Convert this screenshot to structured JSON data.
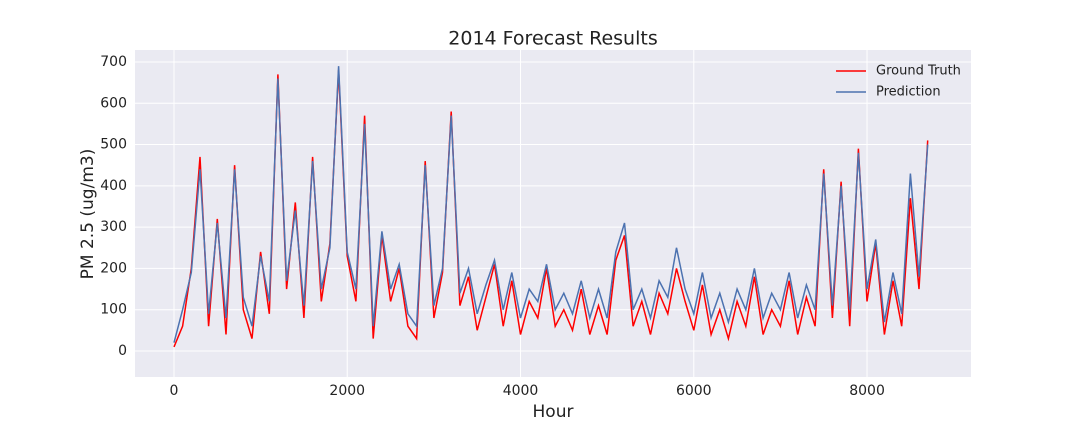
{
  "chart_data": {
    "type": "line",
    "title": "2014 Forecast Results",
    "xlabel": "Hour",
    "ylabel": "PM 2.5 (ug/m3)",
    "x": [
      0,
      100,
      200,
      300,
      400,
      500,
      600,
      700,
      800,
      900,
      1000,
      1100,
      1200,
      1300,
      1400,
      1500,
      1600,
      1700,
      1800,
      1900,
      2000,
      2100,
      2200,
      2300,
      2400,
      2500,
      2600,
      2700,
      2800,
      2900,
      3000,
      3100,
      3200,
      3300,
      3400,
      3500,
      3600,
      3700,
      3800,
      3900,
      4000,
      4100,
      4200,
      4300,
      4400,
      4500,
      4600,
      4700,
      4800,
      4900,
      5000,
      5100,
      5200,
      5300,
      5400,
      5500,
      5600,
      5700,
      5800,
      5900,
      6000,
      6100,
      6200,
      6300,
      6400,
      6500,
      6600,
      6700,
      6800,
      6900,
      7000,
      7100,
      7200,
      7300,
      7400,
      7500,
      7600,
      7700,
      7800,
      7900,
      8000,
      8100,
      8200,
      8300,
      8400,
      8500,
      8600,
      8700
    ],
    "series": [
      {
        "name": "Ground Truth",
        "color": "#ff0000",
        "values": [
          10,
          60,
          200,
          470,
          60,
          320,
          40,
          450,
          100,
          30,
          240,
          90,
          670,
          150,
          360,
          80,
          470,
          120,
          260,
          680,
          230,
          120,
          570,
          30,
          280,
          120,
          200,
          60,
          30,
          460,
          80,
          190,
          580,
          110,
          180,
          50,
          130,
          210,
          60,
          170,
          40,
          120,
          80,
          200,
          60,
          100,
          50,
          150,
          40,
          110,
          40,
          220,
          280,
          60,
          120,
          40,
          140,
          90,
          200,
          120,
          50,
          160,
          40,
          100,
          30,
          120,
          60,
          180,
          40,
          100,
          60,
          170,
          40,
          130,
          60,
          440,
          80,
          410,
          60,
          490,
          120,
          260,
          40,
          170,
          60,
          370,
          150,
          510
        ]
      },
      {
        "name": "Prediction",
        "color": "#4c72b0",
        "values": [
          20,
          100,
          190,
          440,
          90,
          310,
          80,
          440,
          130,
          60,
          230,
          120,
          660,
          170,
          340,
          110,
          460,
          150,
          250,
          690,
          240,
          150,
          550,
          60,
          290,
          150,
          210,
          90,
          60,
          450,
          110,
          200,
          570,
          140,
          200,
          90,
          160,
          220,
          100,
          190,
          80,
          150,
          120,
          210,
          100,
          140,
          90,
          170,
          80,
          150,
          80,
          240,
          310,
          100,
          150,
          80,
          170,
          130,
          250,
          150,
          90,
          190,
          80,
          140,
          70,
          150,
          100,
          200,
          80,
          140,
          100,
          190,
          80,
          160,
          100,
          430,
          110,
          400,
          100,
          480,
          150,
          270,
          70,
          190,
          90,
          430,
          180,
          500
        ]
      }
    ],
    "xlim": [
      -450,
      9200
    ],
    "ylim": [
      -63,
      729
    ],
    "xticks": [
      0,
      2000,
      4000,
      6000,
      8000
    ],
    "yticks": [
      0,
      100,
      200,
      300,
      400,
      500,
      600,
      700
    ],
    "grid": true,
    "legend": "upper right"
  }
}
